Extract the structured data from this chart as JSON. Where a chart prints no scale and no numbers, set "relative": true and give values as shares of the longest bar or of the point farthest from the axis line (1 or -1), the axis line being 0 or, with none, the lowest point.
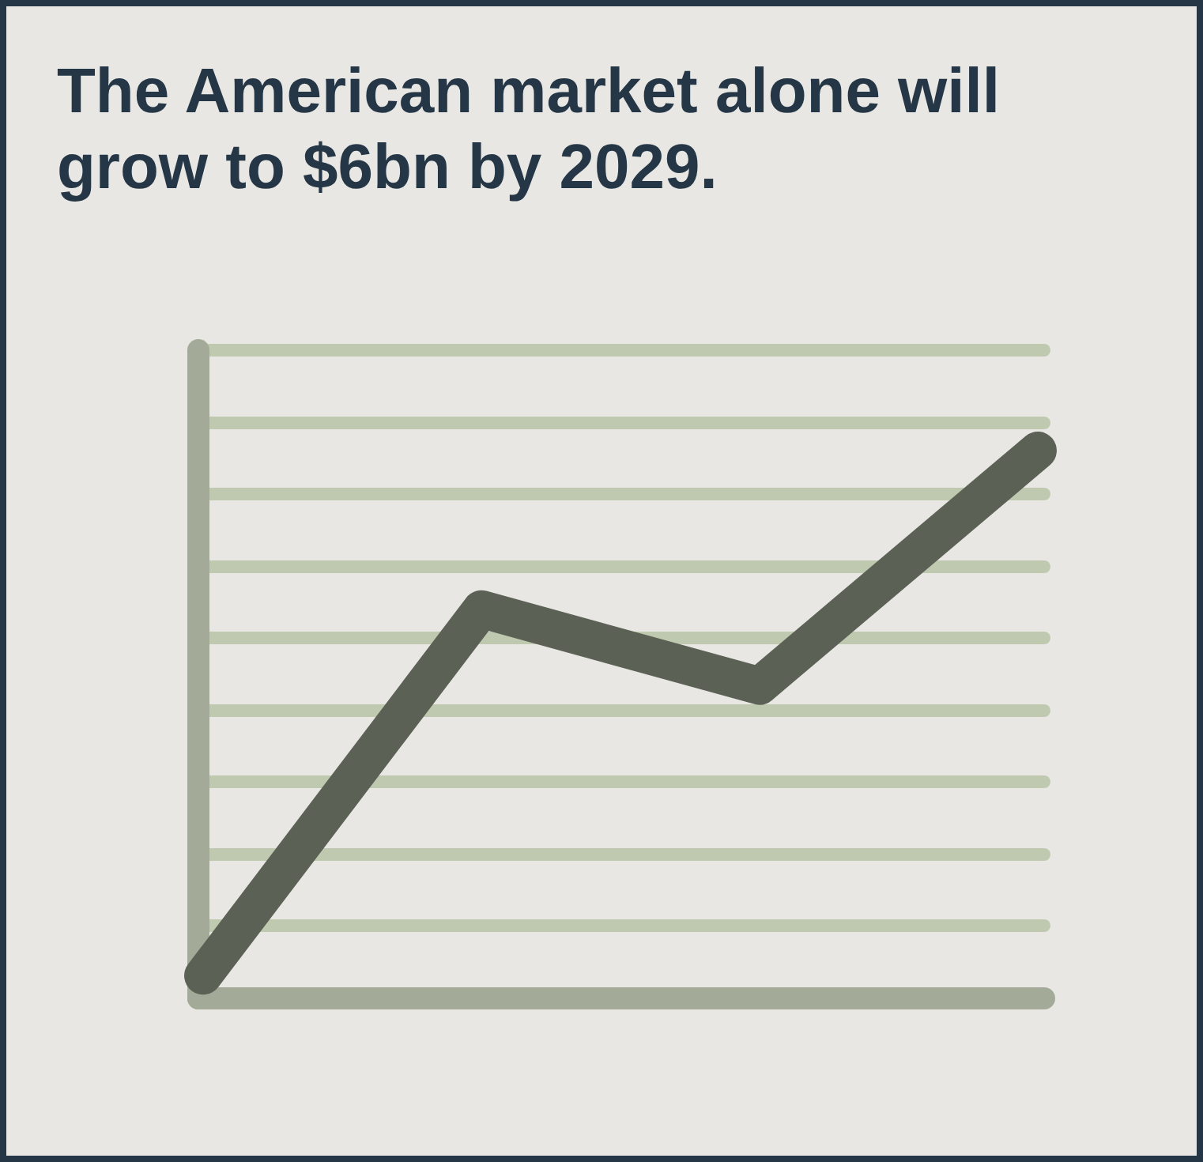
{
  "chart_data": {
    "type": "line",
    "title": "The American market alone will grow to $6bn by 2029.",
    "categories": [
      null,
      null,
      null,
      null
    ],
    "relative": true,
    "grid": "y",
    "series": [
      {
        "color": "#5c6155",
        "values": [
          0.04,
          0.71,
          0.57,
          1
        ]
      }
    ]
  }
}
